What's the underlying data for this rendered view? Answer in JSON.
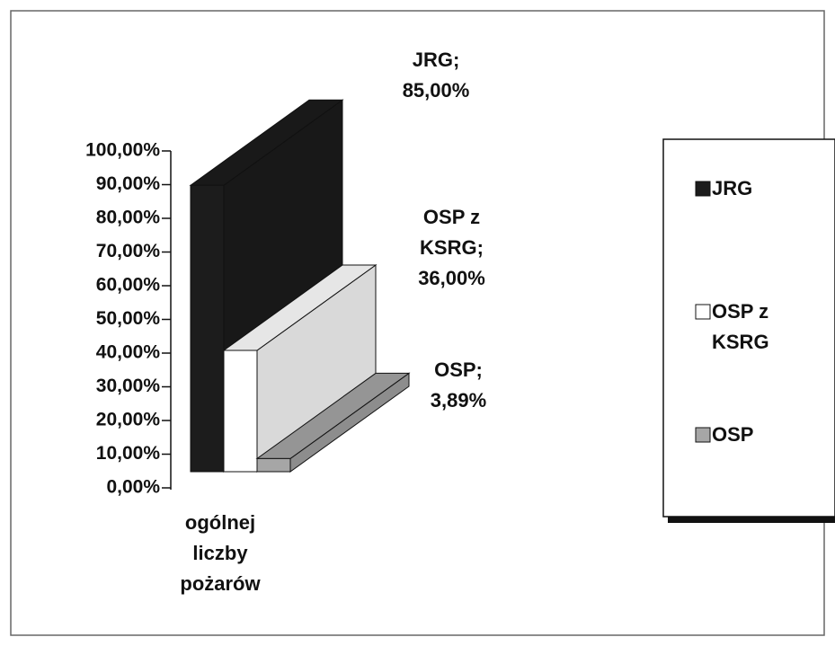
{
  "chart_data": {
    "type": "bar3d",
    "categories": [
      "ogólnej liczby pożarów"
    ],
    "series": [
      {
        "name": "JRG",
        "color": "#1c1c1c",
        "values": [
          85
        ],
        "value_labels": [
          "JRG; 85,00%"
        ]
      },
      {
        "name": "OSP z KSRG",
        "color": "#ffffff",
        "values": [
          36
        ],
        "value_labels": [
          "OSP z KSRG; 36,00%"
        ]
      },
      {
        "name": "OSP",
        "color": "#a6a6a6",
        "values": [
          3.89
        ],
        "value_labels": [
          "OSP; 3,89%"
        ]
      }
    ],
    "ylim": [
      0,
      100
    ],
    "yticks": [
      {
        "value": 0,
        "label": "0,00%"
      },
      {
        "value": 10,
        "label": "10,00%"
      },
      {
        "value": 20,
        "label": "20,00%"
      },
      {
        "value": 30,
        "label": "30,00%"
      },
      {
        "value": 40,
        "label": "40,00%"
      },
      {
        "value": 50,
        "label": "50,00%"
      },
      {
        "value": 60,
        "label": "60,00%"
      },
      {
        "value": 70,
        "label": "70,00%"
      },
      {
        "value": 80,
        "label": "80,00%"
      },
      {
        "value": 90,
        "label": "90,00%"
      },
      {
        "value": 100,
        "label": "100,00%"
      }
    ],
    "legend": "right"
  }
}
